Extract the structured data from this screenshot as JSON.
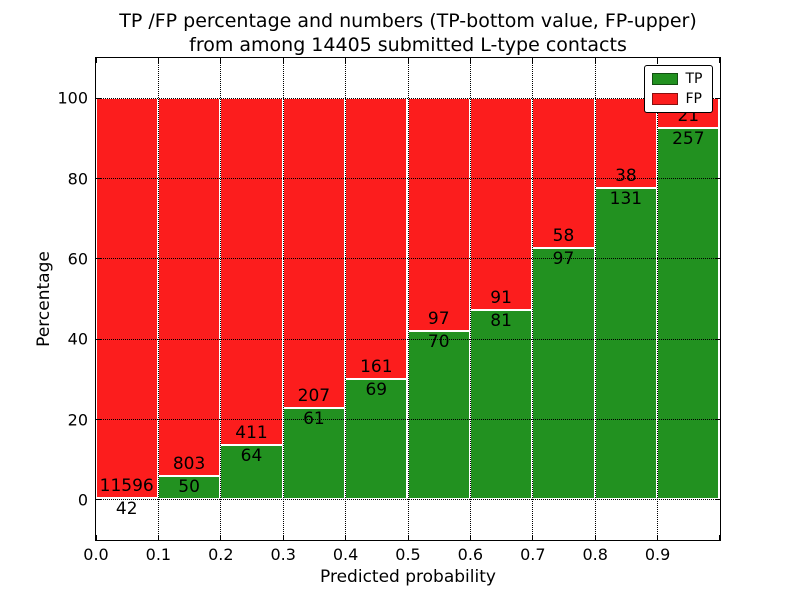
{
  "chart_data": {
    "type": "bar",
    "stacked": true,
    "title_line1": "TP /FP percentage and numbers (TP-bottom value, FP-upper)",
    "title_line2": "from among 14405 submitted L-type contacts",
    "xlabel": "Predicted probability",
    "ylabel": "Percentage",
    "total_contacts": 14405,
    "xlim": [
      0.0,
      1.0
    ],
    "ylim": [
      -10,
      110
    ],
    "x_tick_labels": [
      "0.0",
      "0.1",
      "0.2",
      "0.3",
      "0.4",
      "0.5",
      "0.6",
      "0.7",
      "0.8",
      "0.9"
    ],
    "y_ticks": [
      0,
      20,
      40,
      60,
      80,
      100
    ],
    "grid": true,
    "legend_position": "upper right",
    "series": [
      {
        "name": "TP",
        "color": "#229120"
      },
      {
        "name": "FP",
        "color": "#fc1d1d"
      }
    ],
    "bins": [
      {
        "x_range": [
          0.0,
          0.1
        ],
        "tp": 42,
        "fp": 11596,
        "tp_percent": 0.36
      },
      {
        "x_range": [
          0.1,
          0.2
        ],
        "tp": 50,
        "fp": 803,
        "tp_percent": 5.86
      },
      {
        "x_range": [
          0.2,
          0.3
        ],
        "tp": 64,
        "fp": 411,
        "tp_percent": 13.47
      },
      {
        "x_range": [
          0.3,
          0.4
        ],
        "tp": 61,
        "fp": 207,
        "tp_percent": 22.76
      },
      {
        "x_range": [
          0.4,
          0.5
        ],
        "tp": 69,
        "fp": 161,
        "tp_percent": 30.0
      },
      {
        "x_range": [
          0.5,
          0.6
        ],
        "tp": 70,
        "fp": 97,
        "tp_percent": 41.92
      },
      {
        "x_range": [
          0.6,
          0.7
        ],
        "tp": 81,
        "fp": 91,
        "tp_percent": 47.09
      },
      {
        "x_range": [
          0.7,
          0.8
        ],
        "tp": 97,
        "fp": 58,
        "tp_percent": 62.58
      },
      {
        "x_range": [
          0.8,
          0.9
        ],
        "tp": 131,
        "fp": 38,
        "tp_percent": 77.51
      },
      {
        "x_range": [
          0.9,
          1.0
        ],
        "tp": 257,
        "fp": 21,
        "tp_percent": 92.45
      }
    ]
  }
}
